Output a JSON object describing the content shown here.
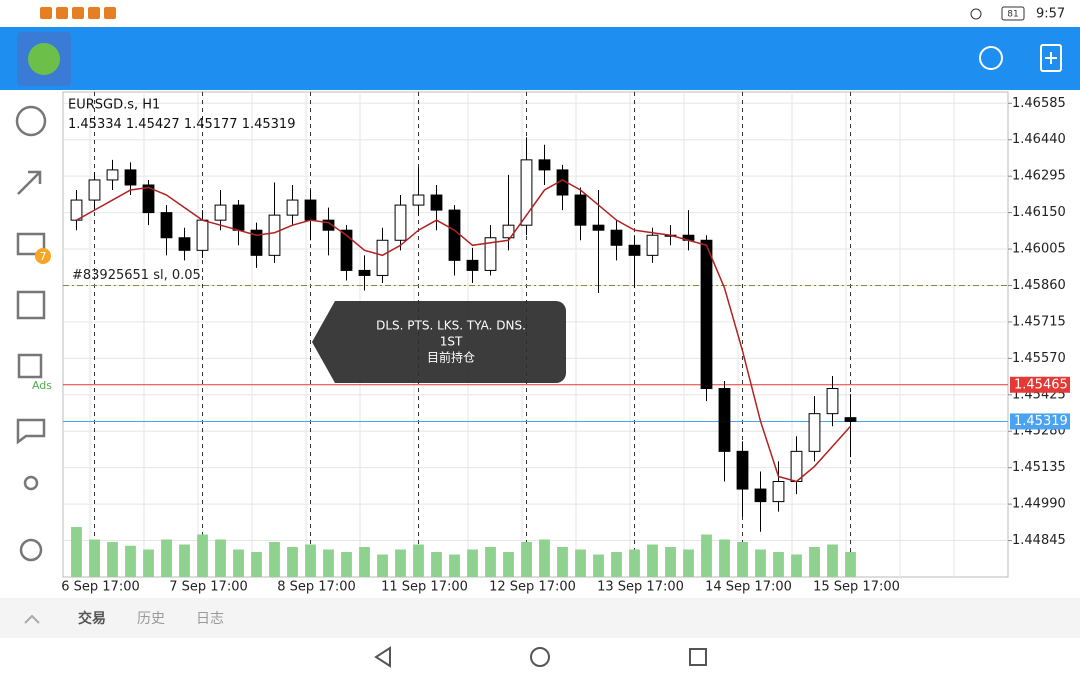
{
  "status_bar": {
    "time": "9:57",
    "battery": "81"
  },
  "sidebar": {
    "mail_badge": "7",
    "ads_label": "Ads"
  },
  "chart_data": {
    "type": "candlestick",
    "title": "EURSGD.s, H1",
    "x": [
      -1,
      0,
      1,
      2,
      3,
      4,
      5,
      6,
      7,
      8,
      9,
      10,
      11,
      12,
      13,
      14,
      15,
      16,
      17,
      18,
      19,
      20,
      21,
      22,
      23,
      24,
      25,
      26,
      27,
      28,
      29,
      30,
      31,
      32,
      33,
      34,
      35,
      36,
      37,
      38,
      39,
      40,
      41,
      42
    ],
    "open": [
      1.4612,
      1.462,
      1.4628,
      1.4632,
      1.4626,
      1.4615,
      1.4605,
      1.46,
      1.4612,
      1.4618,
      1.4608,
      1.4598,
      1.4614,
      1.462,
      1.4612,
      1.4608,
      1.4592,
      1.459,
      1.4604,
      1.4618,
      1.4622,
      1.4616,
      1.4596,
      1.4592,
      1.4605,
      1.461,
      1.4636,
      1.4632,
      1.4622,
      1.461,
      1.4608,
      1.4602,
      1.4598,
      1.4606,
      1.4606,
      1.4604,
      1.4545,
      1.452,
      1.4505,
      1.45,
      1.4508,
      1.452,
      1.4535,
      1.45334
    ],
    "high": [
      1.4624,
      1.4631,
      1.4636,
      1.4635,
      1.4628,
      1.4618,
      1.4609,
      1.4616,
      1.4624,
      1.462,
      1.4611,
      1.4627,
      1.4626,
      1.4624,
      1.4617,
      1.461,
      1.4598,
      1.4609,
      1.4622,
      1.4633,
      1.4626,
      1.4618,
      1.4601,
      1.461,
      1.463,
      1.4645,
      1.4642,
      1.4634,
      1.4625,
      1.4624,
      1.4612,
      1.4606,
      1.4609,
      1.461,
      1.4616,
      1.4606,
      1.4548,
      1.4524,
      1.4512,
      1.4516,
      1.4526,
      1.4542,
      1.455,
      1.45427
    ],
    "low": [
      1.4608,
      1.4616,
      1.4624,
      1.4622,
      1.461,
      1.4598,
      1.4596,
      1.4597,
      1.4608,
      1.4602,
      1.4593,
      1.4595,
      1.461,
      1.4604,
      1.4598,
      1.4588,
      1.4584,
      1.4587,
      1.46,
      1.4614,
      1.4608,
      1.459,
      1.4587,
      1.459,
      1.46,
      1.4606,
      1.4626,
      1.4616,
      1.4604,
      1.4583,
      1.4596,
      1.4585,
      1.4595,
      1.4602,
      1.46,
      1.454,
      1.4508,
      1.4494,
      1.4488,
      1.4496,
      1.4503,
      1.4516,
      1.453,
      1.45177
    ],
    "close": [
      1.462,
      1.4628,
      1.4632,
      1.4626,
      1.4615,
      1.4605,
      1.46,
      1.4612,
      1.4618,
      1.4608,
      1.4598,
      1.4614,
      1.462,
      1.4612,
      1.4608,
      1.4592,
      1.459,
      1.4604,
      1.4618,
      1.4622,
      1.4616,
      1.4596,
      1.4592,
      1.4605,
      1.461,
      1.4636,
      1.4632,
      1.4622,
      1.461,
      1.4608,
      1.4602,
      1.4598,
      1.4606,
      1.4606,
      1.4604,
      1.4545,
      1.452,
      1.4505,
      1.45,
      1.4508,
      1.452,
      1.4535,
      1.4545,
      1.45319
    ],
    "ma": {
      "color": "#b22222",
      "values": [
        1.4612,
        1.4616,
        1.462,
        1.4624,
        1.4625,
        1.4622,
        1.4617,
        1.4612,
        1.461,
        1.4608,
        1.4606,
        1.4607,
        1.461,
        1.4612,
        1.4611,
        1.4606,
        1.46,
        1.4598,
        1.4602,
        1.4608,
        1.4612,
        1.4608,
        1.4602,
        1.4603,
        1.4604,
        1.4614,
        1.4624,
        1.4628,
        1.4624,
        1.4618,
        1.4612,
        1.4608,
        1.4607,
        1.4606,
        1.4604,
        1.4602,
        1.4585,
        1.456,
        1.4532,
        1.451,
        1.4508,
        1.4514,
        1.4522,
        1.453
      ]
    },
    "volume": {
      "color": "#8fd18f",
      "values": [
        40,
        30,
        28,
        25,
        22,
        30,
        26,
        34,
        30,
        22,
        20,
        28,
        24,
        26,
        22,
        20,
        24,
        18,
        22,
        26,
        20,
        18,
        22,
        24,
        20,
        28,
        30,
        24,
        22,
        18,
        20,
        22,
        26,
        24,
        22,
        34,
        30,
        28,
        22,
        20,
        18,
        24,
        26,
        20
      ]
    },
    "xlim": [
      -1.75,
      50.75
    ],
    "xticks": [
      {
        "value": 0,
        "label": "6 Sep 17:00"
      },
      {
        "value": 6,
        "label": "7 Sep 17:00"
      },
      {
        "value": 12,
        "label": "8 Sep 17:00"
      },
      {
        "value": 18,
        "label": "11 Sep 17:00"
      },
      {
        "value": 24,
        "label": "12 Sep 17:00"
      },
      {
        "value": 30,
        "label": "13 Sep 17:00"
      },
      {
        "value": 36,
        "label": "14 Sep 17:00"
      },
      {
        "value": 42,
        "label": "15 Sep 17:00"
      }
    ],
    "ylim": [
      1.447,
      1.4663
    ],
    "yticks": [
      1.46585,
      {
        "value": 1.4644,
        "label": "1.46440"
      },
      1.46295,
      {
        "value": 1.4615,
        "label": "1.46150"
      },
      1.46005,
      {
        "value": 1.4586,
        "label": "1.45860"
      },
      1.45715,
      {
        "value": 1.4557,
        "label": "1.45570"
      },
      1.45425,
      {
        "value": 1.4528,
        "label": "1.45280"
      },
      1.45135,
      {
        "value": 1.4499,
        "label": "1.44990"
      },
      1.44845
    ],
    "grid": true,
    "levels": [
      {
        "value": 1.45465,
        "color": "#e53935"
      },
      {
        "value": 1.45319,
        "color": "#4aa3f0"
      }
    ],
    "order": {
      "label": "#83925651 sl, 0.05",
      "value": 1.4586,
      "color": "#8a8a2a"
    }
  },
  "tooltip": {
    "lines": [
      "DLS. PTS. LKS. TYA. DNS.",
      "1ST",
      "目前持仓"
    ]
  },
  "tabs": [
    "交易",
    "历史",
    "日志"
  ]
}
